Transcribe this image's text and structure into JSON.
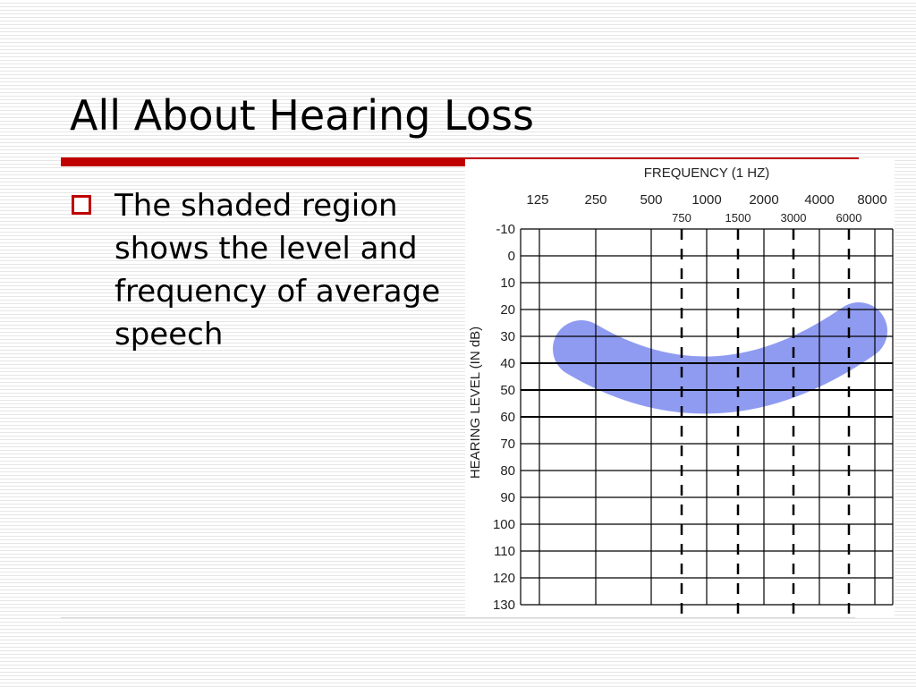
{
  "title": "All About Hearing Loss",
  "bullet": "The shaded region shows the level and frequency of average speech",
  "audiogram": {
    "x_title": "FREQUENCY (1 HZ)",
    "y_title": "HEARING LEVEL (IN dB)",
    "x_labels": [
      "125",
      "250",
      "500",
      "1000",
      "2000",
      "4000",
      "8000"
    ],
    "x_half_labels": [
      "750",
      "1500",
      "3000",
      "6000"
    ],
    "y_labels": [
      "-10",
      "0",
      "10",
      "20",
      "30",
      "40",
      "50",
      "60",
      "70",
      "80",
      "90",
      "100",
      "110",
      "120",
      "130"
    ]
  }
}
